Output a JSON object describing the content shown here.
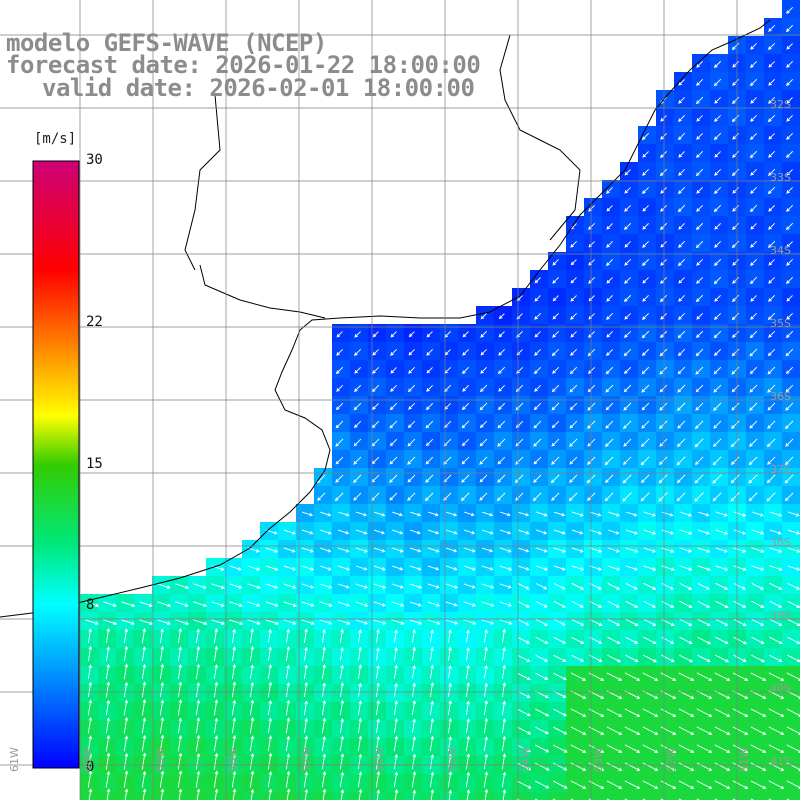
{
  "title": {
    "model_line": "modelo GEFS-WAVE (NCEP)",
    "forecast_line": "forecast date: 2026-01-22 18:00:00",
    "valid_line": "valid date: 2026-02-01 18:00:00"
  },
  "colorbar": {
    "unit": "[m/s]",
    "min": 0,
    "max": 30,
    "ticks": [
      "30",
      "22",
      "15",
      "8",
      "0"
    ],
    "tick_values": [
      30,
      22,
      15,
      8,
      0
    ]
  },
  "grid": {
    "lat_labels": [
      "32S",
      "33S",
      "34S",
      "35S",
      "36S",
      "37S",
      "38S",
      "39S",
      "40S",
      "41S"
    ],
    "lon_labels": [
      "61W",
      "60W",
      "59W",
      "58W",
      "57W",
      "56W",
      "55W",
      "54W",
      "53W",
      "52W",
      "51W"
    ]
  },
  "colors": {
    "land": "#ffffff",
    "coastline": "#000000",
    "grid_lines": "#7f7f7f",
    "arrows": "#ffffff",
    "title_text": "#8c8c8c",
    "label_text": "#9a9a9a"
  }
}
